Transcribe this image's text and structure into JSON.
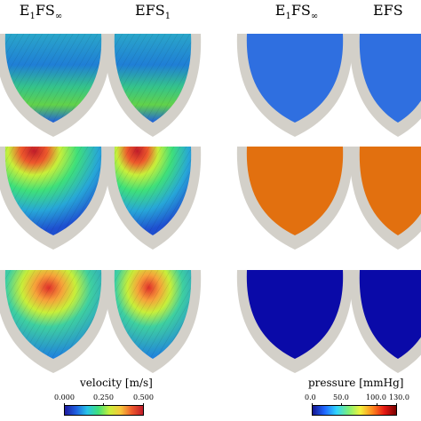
{
  "columns": [
    {
      "base": "E",
      "sub1": "1",
      "mid": "FS",
      "sub2": "∞"
    },
    {
      "base": "EFS",
      "sub1": "1",
      "mid": "",
      "sub2": ""
    },
    {
      "base": "E",
      "sub1": "1",
      "mid": "FS",
      "sub2": "∞"
    },
    {
      "base": "EFS",
      "sub1": "",
      "mid": "",
      "sub2": ""
    }
  ],
  "colorbars": {
    "velocity": {
      "title": "velocity [m/s]",
      "ticks": [
        "0.000",
        "0.250",
        "0.500"
      ],
      "colors": [
        "#1f1a9e",
        "#1e5fe0",
        "#27c3e8",
        "#3fe07a",
        "#c8ef3a",
        "#f7c63a",
        "#ee5a2c",
        "#c01c2a"
      ]
    },
    "pressure": {
      "title": "pressure [mmHg]",
      "ticks": [
        "0.0",
        "50.0",
        "100.0",
        "130.0"
      ],
      "colors": [
        "#14148f",
        "#1f66ff",
        "#30d4ff",
        "#7cf07a",
        "#f2f23c",
        "#ff8a1e",
        "#e81a14",
        "#7a0000"
      ]
    }
  },
  "panels": [
    {
      "name": "velocity-e1fsinf-row1",
      "fill": "velocity-low"
    },
    {
      "name": "velocity-efs1-row1",
      "fill": "velocity-low"
    },
    {
      "name": "pressure-e1fsinf-row1",
      "fill": "#2f6fe0"
    },
    {
      "name": "pressure-efs-row1",
      "fill": "#2f6fe0"
    },
    {
      "name": "velocity-e1fsinf-row2",
      "fill": "velocity-high"
    },
    {
      "name": "velocity-efs1-row2",
      "fill": "velocity-high"
    },
    {
      "name": "pressure-e1fsinf-row2",
      "fill": "#e2700f"
    },
    {
      "name": "pressure-efs-row2",
      "fill": "#e2700f"
    },
    {
      "name": "velocity-e1fsinf-row3",
      "fill": "velocity-mid"
    },
    {
      "name": "velocity-efs1-row3",
      "fill": "velocity-mid"
    },
    {
      "name": "pressure-e1fsinf-row3",
      "fill": "#0a0aa8"
    },
    {
      "name": "pressure-efs-row3",
      "fill": "#0a0aa8"
    }
  ]
}
